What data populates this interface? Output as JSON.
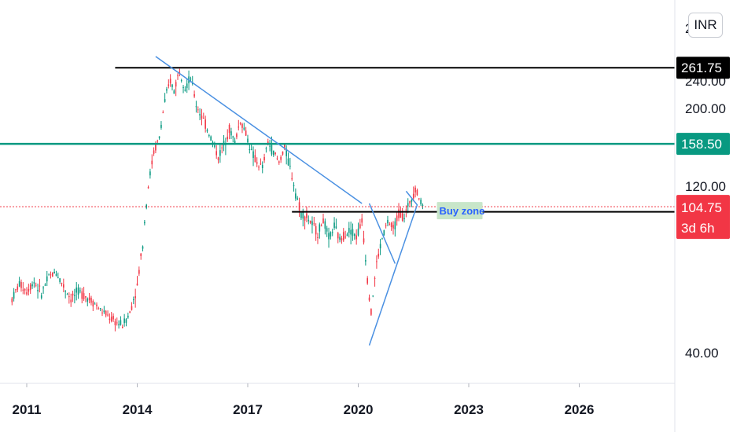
{
  "chart_data": {
    "type": "candlestick",
    "currency": "INR",
    "x_axis": {
      "ticks": [
        "2011",
        "2014",
        "2017",
        "2020",
        "2023",
        "2026"
      ],
      "range": [
        2010.5,
        2028.8
      ]
    },
    "y_axis": {
      "ticks": [
        40,
        120,
        200,
        240
      ],
      "tick_labels": [
        "40.00",
        "120.00",
        "200.00",
        "240.00"
      ],
      "range": [
        20,
        290
      ]
    },
    "price_tags": {
      "resistance": {
        "label": "261.75",
        "value": 261.75,
        "color": "#000000"
      },
      "level": {
        "label": "158.50",
        "value": 158.5,
        "color": "#089981"
      },
      "current": {
        "label": "104.75",
        "value": 104.75,
        "countdown": "3d 6h",
        "color": "#f23645"
      },
      "support": {
        "label": "101.30",
        "value": 101.3,
        "color": "#000000"
      }
    },
    "partial_tick_label": "2",
    "annotation": {
      "text": "Buy zone",
      "x": 2022.2,
      "y": 101.5
    },
    "lines": {
      "resistance": {
        "x1": 2013.4,
        "x2": 2028.8,
        "y": 261.75
      },
      "support": {
        "x1": 2018.2,
        "x2": 2028.8,
        "y": 101.3
      },
      "level": {
        "x1": 2010.5,
        "x2": 2028.8,
        "y": 158.5
      },
      "downtrend": {
        "points": [
          [
            2014.5,
            282
          ],
          [
            2020.1,
            107
          ]
        ]
      },
      "wedge": {
        "points": [
          [
            2020.3,
            42
          ],
          [
            2021.6,
            106
          ],
          [
            2021.3,
            116
          ]
        ]
      },
      "wedge_lower": {
        "points": [
          [
            2020.3,
            107
          ],
          [
            2021.0,
            72
          ]
        ]
      }
    },
    "price_series": [
      [
        2010.6,
        57
      ],
      [
        2010.8,
        63
      ],
      [
        2011.0,
        60
      ],
      [
        2011.2,
        64
      ],
      [
        2011.4,
        59
      ],
      [
        2011.6,
        66
      ],
      [
        2011.8,
        68
      ],
      [
        2012.0,
        62
      ],
      [
        2012.2,
        57
      ],
      [
        2012.4,
        60
      ],
      [
        2012.6,
        58
      ],
      [
        2012.8,
        56
      ],
      [
        2013.0,
        53
      ],
      [
        2013.2,
        51
      ],
      [
        2013.4,
        49
      ],
      [
        2013.6,
        48
      ],
      [
        2013.8,
        52
      ],
      [
        2014.0,
        62
      ],
      [
        2014.15,
        82
      ],
      [
        2014.3,
        120
      ],
      [
        2014.45,
        150
      ],
      [
        2014.6,
        165
      ],
      [
        2014.75,
        210
      ],
      [
        2014.9,
        240
      ],
      [
        2015.0,
        225
      ],
      [
        2015.15,
        258
      ],
      [
        2015.3,
        230
      ],
      [
        2015.45,
        245
      ],
      [
        2015.6,
        205
      ],
      [
        2015.75,
        190
      ],
      [
        2015.9,
        175
      ],
      [
        2016.05,
        160
      ],
      [
        2016.2,
        145
      ],
      [
        2016.35,
        158
      ],
      [
        2016.5,
        175
      ],
      [
        2016.65,
        160
      ],
      [
        2016.8,
        185
      ],
      [
        2016.95,
        170
      ],
      [
        2017.1,
        150
      ],
      [
        2017.25,
        140
      ],
      [
        2017.4,
        135
      ],
      [
        2017.55,
        160
      ],
      [
        2017.7,
        150
      ],
      [
        2017.85,
        140
      ],
      [
        2018.0,
        155
      ],
      [
        2018.15,
        135
      ],
      [
        2018.3,
        115
      ],
      [
        2018.45,
        100
      ],
      [
        2018.6,
        98
      ],
      [
        2018.75,
        93
      ],
      [
        2018.9,
        88
      ],
      [
        2019.05,
        96
      ],
      [
        2019.2,
        85
      ],
      [
        2019.35,
        92
      ],
      [
        2019.5,
        84
      ],
      [
        2019.65,
        88
      ],
      [
        2019.8,
        90
      ],
      [
        2019.95,
        86
      ],
      [
        2020.1,
        95
      ],
      [
        2020.25,
        65
      ],
      [
        2020.35,
        52
      ],
      [
        2020.5,
        72
      ],
      [
        2020.65,
        85
      ],
      [
        2020.8,
        95
      ],
      [
        2020.95,
        90
      ],
      [
        2021.1,
        100
      ],
      [
        2021.25,
        98
      ],
      [
        2021.4,
        108
      ],
      [
        2021.55,
        118
      ],
      [
        2021.7,
        108
      ],
      [
        2021.8,
        104.75
      ]
    ]
  }
}
